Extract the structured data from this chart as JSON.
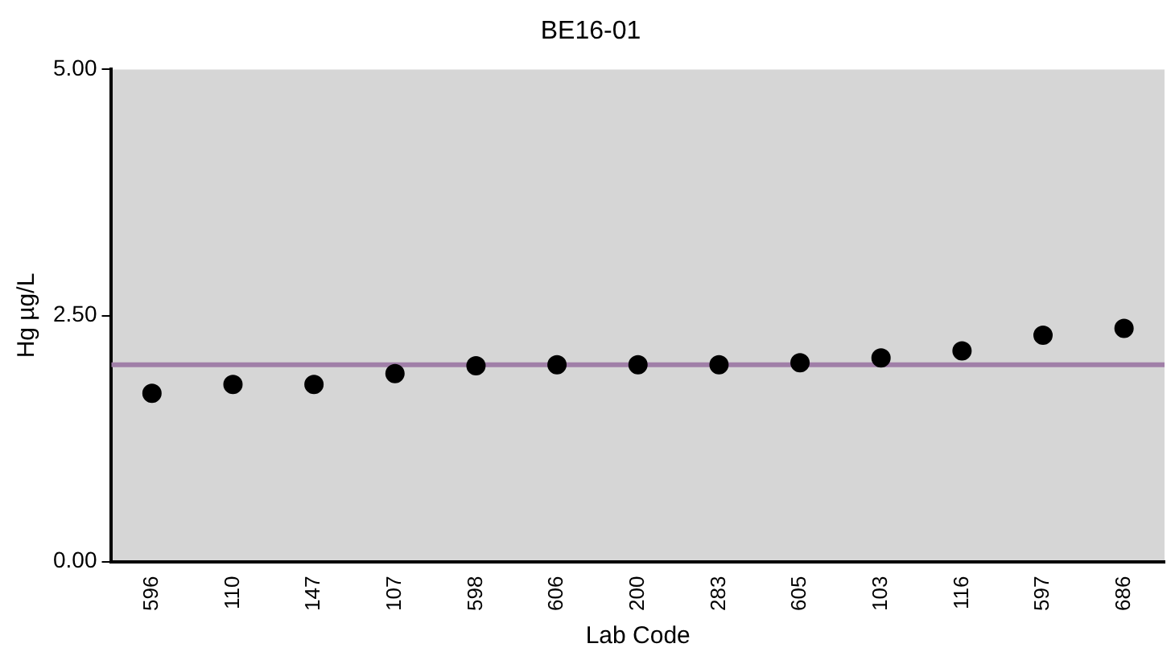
{
  "chart_data": {
    "type": "scatter",
    "title": "BE16-01",
    "xlabel": "Lab Code",
    "ylabel": "Hg µg/L",
    "categories": [
      "596",
      "110",
      "147",
      "107",
      "598",
      "606",
      "200",
      "283",
      "605",
      "103",
      "116",
      "597",
      "686"
    ],
    "series": [
      {
        "color": "#000000",
        "values": [
          1.71,
          1.8,
          1.8,
          1.91,
          1.99,
          2.0,
          2.0,
          2.0,
          2.02,
          2.07,
          2.14,
          2.3,
          2.37
        ]
      }
    ],
    "ylim": [
      0,
      5
    ],
    "yticks": [
      {
        "value": 0,
        "label": "0.00"
      },
      {
        "value": 2.5,
        "label": "2.50"
      },
      {
        "value": 5,
        "label": "5.00"
      }
    ],
    "ref_lines": [
      {
        "axis": "y",
        "value": 2.0,
        "color": "#a07fa8"
      }
    ],
    "marker": "circle",
    "grid": false,
    "legend": false
  }
}
